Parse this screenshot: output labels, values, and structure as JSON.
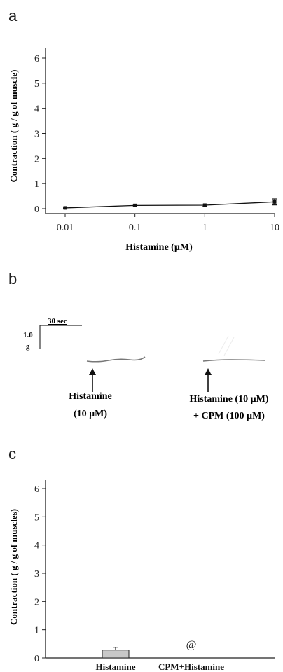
{
  "panels": {
    "a": "a",
    "b": "b",
    "c": "c"
  },
  "chart_data": [
    {
      "type": "line",
      "xscale": "log",
      "x": [
        0.01,
        0.1,
        1,
        10
      ],
      "x_ticks": [
        "0.01",
        "0.1",
        "1",
        "10"
      ],
      "y_ticks": [
        "0",
        "1",
        "2",
        "3",
        "4",
        "5",
        "6"
      ],
      "ylim": [
        0,
        6
      ],
      "series": [
        {
          "values": [
            0.03,
            0.13,
            0.14,
            0.27
          ],
          "errors": [
            0.02,
            0.04,
            0.04,
            0.12
          ]
        }
      ],
      "xlabel": "Histamine (µM)",
      "ylabel": "Contraction ( g / g of muscle)",
      "grid": false
    },
    {
      "type": "bar",
      "categories": [
        "Histamine",
        "CPM+Histamine"
      ],
      "values": [
        0.28,
        0
      ],
      "errors": [
        0.1,
        0
      ],
      "annotations": [
        "",
        "@"
      ],
      "y_ticks": [
        "0",
        "1",
        "2",
        "3",
        "4",
        "5",
        "6"
      ],
      "ylim": [
        0,
        6
      ],
      "ylabel": "Contraction ( g / g of muscles)",
      "grid": false
    }
  ],
  "trace": {
    "time_scale": "30 sec",
    "force_scale_value": "1.0",
    "force_scale_unit": "g",
    "label1_line1": "Histamine",
    "label1_line2": "(10 µM)",
    "label2_line1": "Histamine (10 µM)",
    "label2_line2": "+ CPM (100 µM)"
  }
}
